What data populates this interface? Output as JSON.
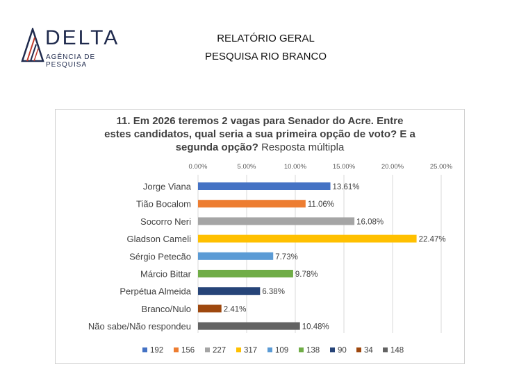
{
  "brand": {
    "name": "DELTA",
    "tagline": "AGÊNCIA DE PESQUISA",
    "colors": {
      "navy": "#1f2a4d",
      "red": "#c0392b"
    }
  },
  "header": {
    "line1": "RELATÓRIO GERAL",
    "line2": "PESQUISA RIO BRANCO"
  },
  "chart_data": {
    "type": "bar",
    "orientation": "horizontal",
    "title_bold": "11. Em 2026 teremos 2 vagas para Senador do Acre. Entre estes candidatos, qual seria a sua primeira opção de voto? E a segunda opção?",
    "title_normal": "Resposta múltipla",
    "title_lines": [
      "11. Em 2026 teremos 2 vagas para Senador do Acre. Entre",
      "estes candidatos, qual seria a sua primeira opção de voto? E a",
      "segunda opção?"
    ],
    "categories": [
      "Jorge Viana",
      "Tião Bocalom",
      "Socorro Neri",
      "Gladson Cameli",
      "Sérgio Petecão",
      "Márcio Bittar",
      "Perpétua Almeida",
      "Branco/Nulo",
      "Não sabe/Não respondeu"
    ],
    "values": [
      13.61,
      11.06,
      16.08,
      22.47,
      7.73,
      9.78,
      6.38,
      2.41,
      10.48
    ],
    "value_labels": [
      "13.61%",
      "11.06%",
      "16.08%",
      "22.47%",
      "7.73%",
      "9.78%",
      "6.38%",
      "2.41%",
      "10.48%"
    ],
    "counts": [
      "192",
      "156",
      "227",
      "317",
      "109",
      "138",
      "90",
      "34",
      "148"
    ],
    "colors": [
      "#4472c4",
      "#ed7d31",
      "#a5a5a5",
      "#ffc000",
      "#5b9bd5",
      "#70ad47",
      "#264478",
      "#9e480e",
      "#636363"
    ],
    "x_ticks": [
      "0.00%",
      "5.00%",
      "10.00%",
      "15.00%",
      "20.00%",
      "25.00%"
    ],
    "xlim": [
      0,
      25
    ],
    "grid": true,
    "legend_position": "bottom"
  }
}
